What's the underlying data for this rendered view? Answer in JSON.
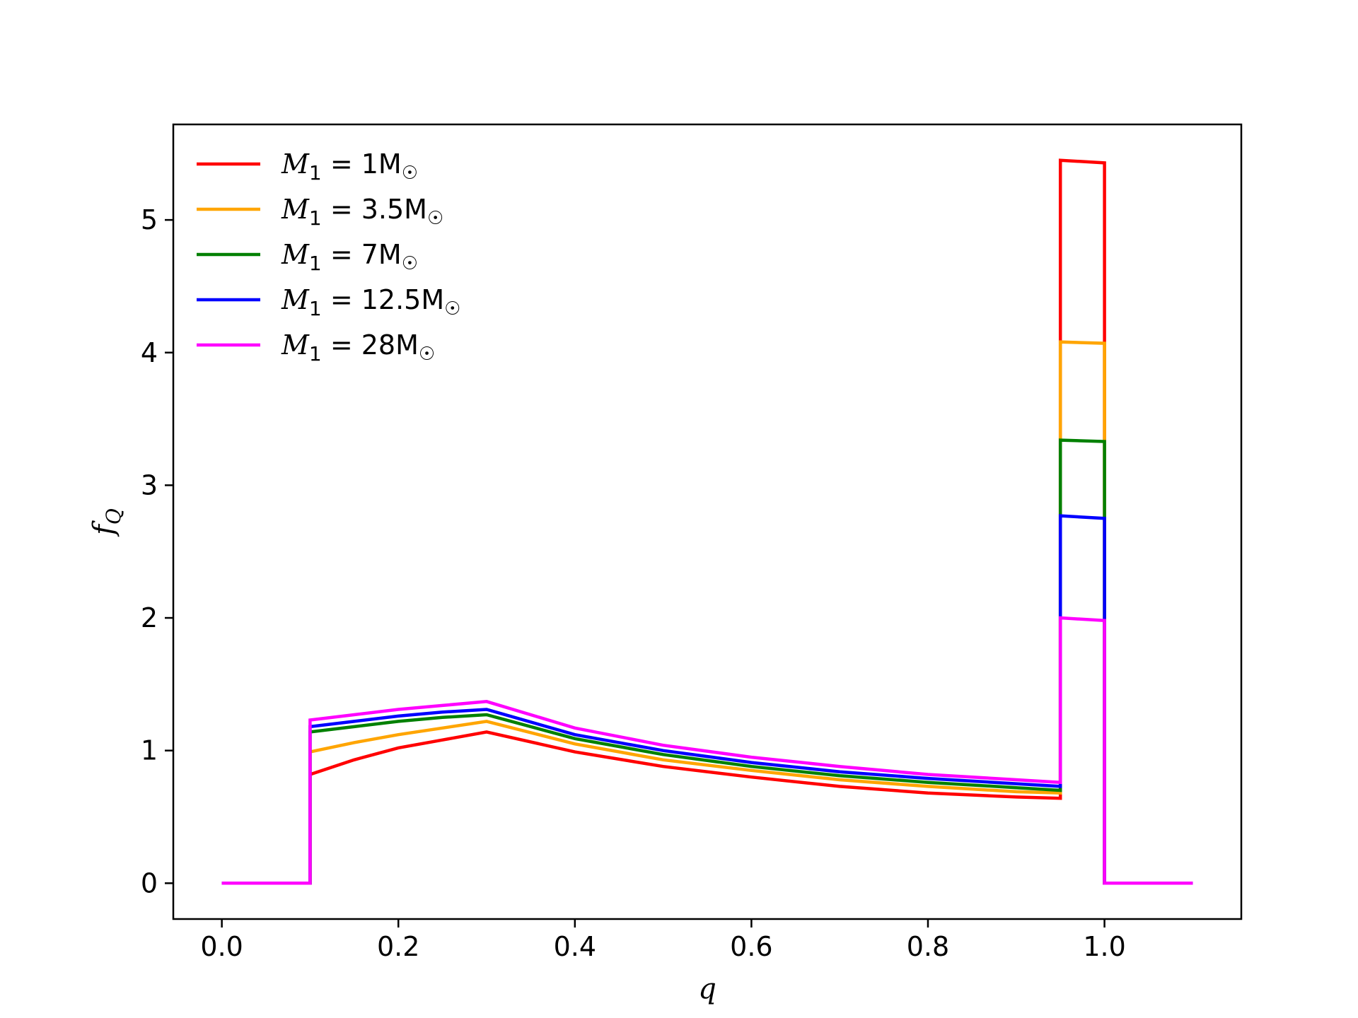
{
  "chart_data": {
    "type": "line",
    "title": "",
    "xlabel": "q",
    "ylabel": "f",
    "ylabel_sub": "Q",
    "xlim": [
      -0.055,
      1.155
    ],
    "ylim": [
      -0.27,
      5.72
    ],
    "xticks": [
      0.0,
      0.2,
      0.4,
      0.6,
      0.8,
      1.0
    ],
    "xtick_labels": [
      "0.0",
      "0.2",
      "0.4",
      "0.6",
      "0.8",
      "1.0"
    ],
    "yticks": [
      0,
      1,
      2,
      3,
      4,
      5
    ],
    "ytick_labels": [
      "0",
      "1",
      "2",
      "3",
      "4",
      "5"
    ],
    "grid": false,
    "legend_position": "top-left",
    "series": [
      {
        "name": "M1 = 1M☉",
        "legend": {
          "var": "M",
          "sub": "1",
          "eq": " = 1M",
          "sun": "☉"
        },
        "color": "#ff0000",
        "x": [
          0,
          0.1,
          0.1,
          0.15,
          0.2,
          0.25,
          0.3,
          0.4,
          0.5,
          0.6,
          0.7,
          0.8,
          0.9,
          0.95,
          0.95,
          1.0,
          1.0,
          1.1
        ],
        "y": [
          0,
          0,
          0.82,
          0.93,
          1.02,
          1.08,
          1.14,
          0.99,
          0.88,
          0.8,
          0.73,
          0.68,
          0.65,
          0.64,
          5.45,
          5.43,
          0,
          0
        ]
      },
      {
        "name": "M1 = 3.5M☉",
        "legend": {
          "var": "M",
          "sub": "1",
          "eq": " = 3.5M",
          "sun": "☉"
        },
        "color": "#ffa500",
        "x": [
          0,
          0.1,
          0.1,
          0.15,
          0.2,
          0.25,
          0.3,
          0.4,
          0.5,
          0.6,
          0.7,
          0.8,
          0.9,
          0.95,
          0.95,
          1.0,
          1.0,
          1.1
        ],
        "y": [
          0,
          0,
          0.99,
          1.06,
          1.12,
          1.17,
          1.22,
          1.05,
          0.93,
          0.85,
          0.78,
          0.73,
          0.69,
          0.68,
          4.08,
          4.07,
          0,
          0
        ]
      },
      {
        "name": "M1 = 7M☉",
        "legend": {
          "var": "M",
          "sub": "1",
          "eq": " = 7M",
          "sun": "☉"
        },
        "color": "#008000",
        "x": [
          0,
          0.1,
          0.1,
          0.15,
          0.2,
          0.25,
          0.3,
          0.4,
          0.5,
          0.6,
          0.7,
          0.8,
          0.9,
          0.95,
          0.95,
          1.0,
          1.0,
          1.1
        ],
        "y": [
          0,
          0,
          1.14,
          1.18,
          1.22,
          1.25,
          1.27,
          1.09,
          0.97,
          0.88,
          0.81,
          0.76,
          0.72,
          0.7,
          3.34,
          3.33,
          0,
          0
        ]
      },
      {
        "name": "M1 = 12.5M☉",
        "legend": {
          "var": "M",
          "sub": "1",
          "eq": " = 12.5M",
          "sun": "☉"
        },
        "color": "#0000ff",
        "x": [
          0,
          0.1,
          0.1,
          0.15,
          0.2,
          0.25,
          0.3,
          0.4,
          0.5,
          0.6,
          0.7,
          0.8,
          0.9,
          0.95,
          0.95,
          1.0,
          1.0,
          1.1
        ],
        "y": [
          0,
          0,
          1.18,
          1.22,
          1.26,
          1.29,
          1.31,
          1.12,
          1.0,
          0.91,
          0.84,
          0.79,
          0.75,
          0.73,
          2.77,
          2.75,
          0,
          0
        ]
      },
      {
        "name": "M1 = 28M☉",
        "legend": {
          "var": "M",
          "sub": "1",
          "eq": " = 28M",
          "sun": "☉"
        },
        "color": "#ff00ff",
        "x": [
          0,
          0.1,
          0.1,
          0.15,
          0.2,
          0.25,
          0.3,
          0.4,
          0.5,
          0.6,
          0.7,
          0.8,
          0.9,
          0.95,
          0.95,
          1.0,
          1.0,
          1.1
        ],
        "y": [
          0,
          0,
          1.23,
          1.27,
          1.31,
          1.34,
          1.37,
          1.17,
          1.04,
          0.95,
          0.88,
          0.82,
          0.78,
          0.76,
          2.0,
          1.98,
          0,
          0
        ]
      }
    ]
  }
}
